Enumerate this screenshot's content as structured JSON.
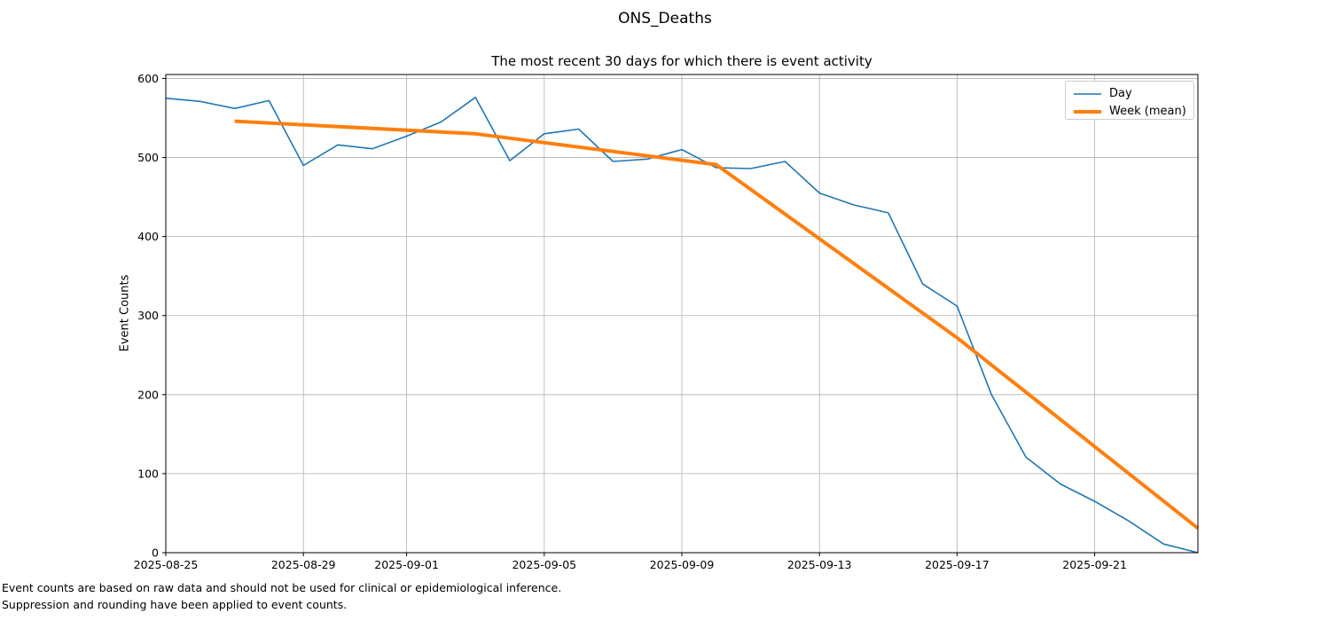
{
  "chart_data": {
    "type": "line",
    "title": "ONS_Deaths",
    "subtitle": "The most recent 30 days for which there is event activity",
    "ylabel": "Event Counts",
    "ylim": [
      0,
      605
    ],
    "yticks": [
      0,
      100,
      200,
      300,
      400,
      500,
      600
    ],
    "xtick_dates": [
      "2025-08-25",
      "2025-08-29",
      "2025-09-01",
      "2025-09-05",
      "2025-09-09",
      "2025-09-13",
      "2025-09-17",
      "2025-09-21"
    ],
    "grid": true,
    "grid_color": "#b0b0b0",
    "spine_color": "#000000",
    "legend_position": "upper right",
    "series": [
      {
        "name": "Day",
        "color": "#1f77b4",
        "line_width": 1.6,
        "dates": [
          "2025-08-25",
          "2025-08-26",
          "2025-08-27",
          "2025-08-28",
          "2025-08-29",
          "2025-08-30",
          "2025-08-31",
          "2025-09-01",
          "2025-09-02",
          "2025-09-03",
          "2025-09-04",
          "2025-09-05",
          "2025-09-06",
          "2025-09-07",
          "2025-09-08",
          "2025-09-09",
          "2025-09-10",
          "2025-09-11",
          "2025-09-12",
          "2025-09-13",
          "2025-09-14",
          "2025-09-15",
          "2025-09-16",
          "2025-09-17",
          "2025-09-18",
          "2025-09-19",
          "2025-09-20",
          "2025-09-21",
          "2025-09-22",
          "2025-09-23",
          "2025-09-24"
        ],
        "values": [
          575,
          571,
          562,
          572,
          490,
          516,
          511,
          527,
          545,
          576,
          496,
          530,
          536,
          495,
          498,
          510,
          487,
          486,
          495,
          455,
          440,
          430,
          340,
          312,
          200,
          121,
          87,
          65,
          40,
          11,
          0
        ]
      },
      {
        "name": "Week (mean)",
        "color": "#ff7f0e",
        "line_width": 4,
        "dates": [
          "2025-08-27",
          "2025-09-03",
          "2025-09-10",
          "2025-09-17",
          "2025-09-24"
        ],
        "values": [
          546,
          530,
          491,
          272,
          31
        ]
      }
    ],
    "footnotes": [
      "Event counts are based on raw data and should not be used for clinical or epidemiological inference.",
      "Suppression and rounding have been applied to event counts."
    ]
  }
}
